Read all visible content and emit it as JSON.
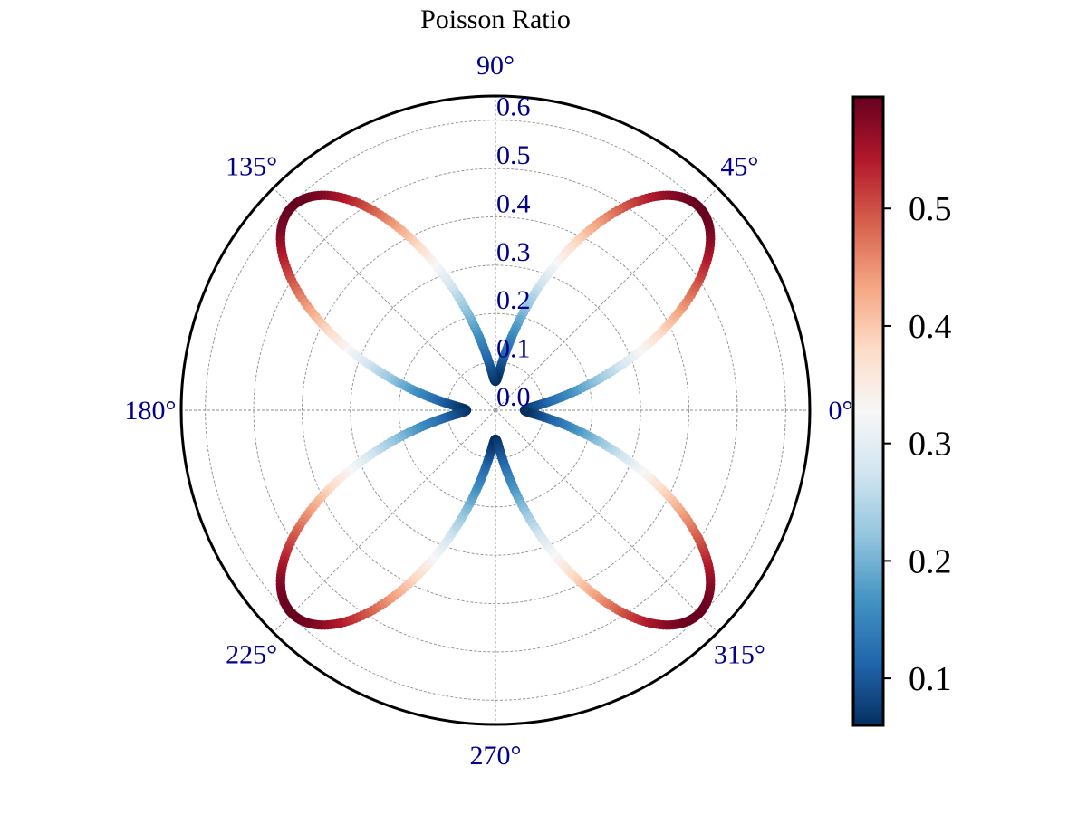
{
  "chart_data": {
    "type": "scatter",
    "projection": "polar",
    "title": "Poisson Ratio",
    "value_label": "",
    "radial_ticks": [
      "0.0",
      "0.1",
      "0.2",
      "0.3",
      "0.4",
      "0.5",
      "0.6"
    ],
    "radial_tick_values": [
      0.0,
      0.1,
      0.2,
      0.3,
      0.4,
      0.5,
      0.6
    ],
    "rlim": [
      0,
      0.65
    ],
    "angle_ticks": [
      "0°",
      "45°",
      "90°",
      "135°",
      "180°",
      "225°",
      "270°",
      "315°"
    ],
    "angle_tick_values": [
      0,
      45,
      90,
      135,
      180,
      225,
      270,
      315
    ],
    "grid": true,
    "colormap": "RdBu_r",
    "colorbar": {
      "ticks": [
        "0.1",
        "0.2",
        "0.3",
        "0.4",
        "0.5"
      ],
      "tick_values": [
        0.1,
        0.2,
        0.3,
        0.4,
        0.5
      ],
      "range": [
        0.06,
        0.595
      ]
    },
    "series": [
      {
        "description_of_shape": "four-lobed curve, r = a + b*sin^2(2*theta); minimum at 0/90/180/270 degrees, maximum at 45/135/225/315 degrees",
        "r_min": 0.06,
        "r_max": 0.595,
        "theta_deg": [
          0,
          10,
          20,
          30,
          40,
          45,
          50,
          60,
          70,
          80,
          90
        ],
        "r": [
          0.06,
          0.123,
          0.286,
          0.461,
          0.576,
          0.595,
          0.576,
          0.461,
          0.286,
          0.123,
          0.06
        ]
      }
    ]
  }
}
